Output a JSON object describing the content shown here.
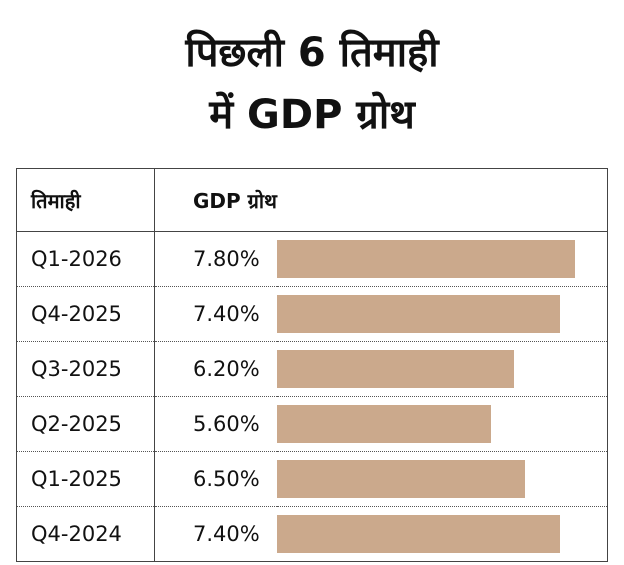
{
  "title": {
    "line1": "पिछली 6 तिमाही",
    "line2": "में GDP ग्रोथ"
  },
  "headers": {
    "quarter": "तिमाही",
    "growth": "GDP ग्रोथ"
  },
  "chart_data": {
    "type": "bar",
    "orientation": "horizontal",
    "title": "पिछली 6 तिमाही में GDP ग्रोथ",
    "categories": [
      "Q1-2026",
      "Q4-2025",
      "Q3-2025",
      "Q2-2025",
      "Q1-2025",
      "Q4-2024"
    ],
    "labels": [
      "7.80%",
      "7.40%",
      "6.20%",
      "5.60%",
      "6.50%",
      "7.40%"
    ],
    "values": [
      7.8,
      7.4,
      6.2,
      5.6,
      6.5,
      7.4
    ],
    "xlim": [
      0,
      7.8
    ],
    "bar_color": "#cba98c"
  }
}
